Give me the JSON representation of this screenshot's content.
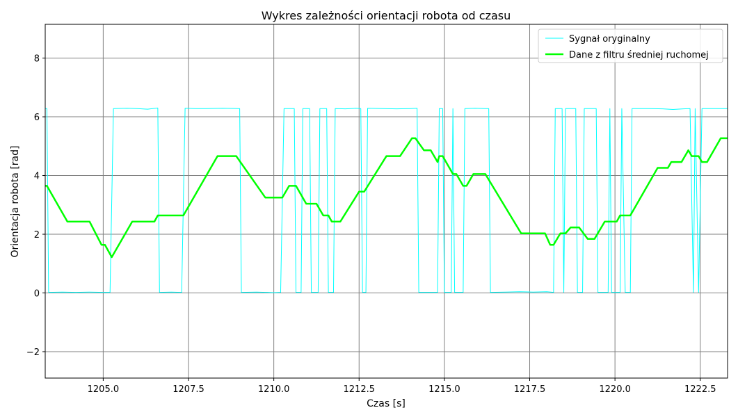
{
  "chart_data": {
    "type": "line",
    "title": "Wykres zależności orientacji robota od czasu",
    "xlabel": "Czas [s]",
    "ylabel": "Orientacja robota [rad]",
    "xlim": [
      1203.3,
      1223.3
    ],
    "ylim": [
      -2.9,
      9.15
    ],
    "xticks": [
      1205.0,
      1207.5,
      1210.0,
      1212.5,
      1215.0,
      1217.5,
      1220.0,
      1222.5
    ],
    "xtick_labels": [
      "1205.0",
      "1207.5",
      "1210.0",
      "1212.5",
      "1215.0",
      "1217.5",
      "1220.0",
      "1222.5"
    ],
    "yticks": [
      -2,
      0,
      2,
      4,
      6,
      8
    ],
    "ytick_labels": [
      "−2",
      "0",
      "2",
      "4",
      "6",
      "8"
    ],
    "grid": true,
    "legend_position": "top-right",
    "series": [
      {
        "name": "Sygnał oryginalny",
        "color": "#00ffff",
        "width": 1,
        "points": [
          [
            1203.3,
            6.28
          ],
          [
            1203.35,
            6.28
          ],
          [
            1203.4,
            0.02
          ],
          [
            1203.8,
            0.03
          ],
          [
            1204.2,
            0.02
          ],
          [
            1204.6,
            0.03
          ],
          [
            1205.0,
            0.02
          ],
          [
            1205.2,
            0.02
          ],
          [
            1205.3,
            6.28
          ],
          [
            1205.7,
            6.29
          ],
          [
            1206.0,
            6.28
          ],
          [
            1206.3,
            6.26
          ],
          [
            1206.6,
            6.3
          ],
          [
            1206.65,
            0.02
          ],
          [
            1207.0,
            0.03
          ],
          [
            1207.3,
            0.02
          ],
          [
            1207.4,
            6.29
          ],
          [
            1207.7,
            6.28
          ],
          [
            1208.0,
            6.28
          ],
          [
            1208.5,
            6.29
          ],
          [
            1209.0,
            6.28
          ],
          [
            1209.05,
            0.02
          ],
          [
            1209.5,
            0.03
          ],
          [
            1209.8,
            0.02
          ],
          [
            1210.0,
            0.01
          ],
          [
            1210.2,
            0.02
          ],
          [
            1210.3,
            6.28
          ],
          [
            1210.6,
            6.28
          ],
          [
            1210.65,
            0.02
          ],
          [
            1210.8,
            0.02
          ],
          [
            1210.85,
            6.28
          ],
          [
            1211.05,
            6.28
          ],
          [
            1211.1,
            0.02
          ],
          [
            1211.3,
            0.02
          ],
          [
            1211.35,
            6.28
          ],
          [
            1211.55,
            6.28
          ],
          [
            1211.6,
            0.02
          ],
          [
            1211.75,
            0.02
          ],
          [
            1211.8,
            6.28
          ],
          [
            1212.1,
            6.27
          ],
          [
            1212.4,
            6.29
          ],
          [
            1212.55,
            6.28
          ],
          [
            1212.6,
            0.02
          ],
          [
            1212.7,
            0.02
          ],
          [
            1212.75,
            6.29
          ],
          [
            1213.2,
            6.28
          ],
          [
            1213.6,
            6.27
          ],
          [
            1214.0,
            6.28
          ],
          [
            1214.2,
            6.29
          ],
          [
            1214.25,
            0.02
          ],
          [
            1214.8,
            0.02
          ],
          [
            1214.85,
            6.28
          ],
          [
            1214.95,
            6.28
          ],
          [
            1215.0,
            0.02
          ],
          [
            1215.2,
            0.02
          ],
          [
            1215.25,
            6.28
          ],
          [
            1215.3,
            0.02
          ],
          [
            1215.55,
            0.02
          ],
          [
            1215.6,
            6.28
          ],
          [
            1215.9,
            6.29
          ],
          [
            1216.2,
            6.28
          ],
          [
            1216.3,
            6.28
          ],
          [
            1216.35,
            0.02
          ],
          [
            1216.8,
            0.03
          ],
          [
            1217.2,
            0.04
          ],
          [
            1217.6,
            0.03
          ],
          [
            1218.0,
            0.04
          ],
          [
            1218.2,
            0.02
          ],
          [
            1218.25,
            6.28
          ],
          [
            1218.45,
            6.28
          ],
          [
            1218.5,
            0.02
          ],
          [
            1218.55,
            6.28
          ],
          [
            1218.85,
            6.28
          ],
          [
            1218.9,
            0.02
          ],
          [
            1219.05,
            0.02
          ],
          [
            1219.1,
            6.28
          ],
          [
            1219.45,
            6.28
          ],
          [
            1219.5,
            0.02
          ],
          [
            1219.8,
            0.02
          ],
          [
            1219.85,
            6.28
          ],
          [
            1219.9,
            0.02
          ],
          [
            1220.15,
            0.02
          ],
          [
            1220.2,
            6.28
          ],
          [
            1220.3,
            0.02
          ],
          [
            1220.45,
            0.02
          ],
          [
            1220.5,
            6.28
          ],
          [
            1221.0,
            6.28
          ],
          [
            1221.4,
            6.27
          ],
          [
            1221.7,
            6.25
          ],
          [
            1222.0,
            6.27
          ],
          [
            1222.2,
            6.28
          ],
          [
            1222.3,
            0.02
          ],
          [
            1222.35,
            6.28
          ],
          [
            1222.45,
            0.02
          ],
          [
            1222.55,
            6.28
          ],
          [
            1223.0,
            6.28
          ],
          [
            1223.3,
            6.28
          ]
        ]
      },
      {
        "name": "Dane z filtru średniej ruchomej",
        "color": "#00ff00",
        "width": 2.5,
        "points": [
          [
            1203.3,
            3.65
          ],
          [
            1203.35,
            3.65
          ],
          [
            1203.95,
            2.43
          ],
          [
            1204.6,
            2.43
          ],
          [
            1204.95,
            1.64
          ],
          [
            1205.05,
            1.64
          ],
          [
            1205.25,
            1.22
          ],
          [
            1205.85,
            2.43
          ],
          [
            1206.5,
            2.43
          ],
          [
            1206.6,
            2.64
          ],
          [
            1207.35,
            2.64
          ],
          [
            1208.35,
            4.66
          ],
          [
            1208.9,
            4.66
          ],
          [
            1209.75,
            3.25
          ],
          [
            1210.25,
            3.25
          ],
          [
            1210.45,
            3.65
          ],
          [
            1210.65,
            3.65
          ],
          [
            1210.95,
            3.04
          ],
          [
            1211.25,
            3.04
          ],
          [
            1211.45,
            2.64
          ],
          [
            1211.6,
            2.64
          ],
          [
            1211.7,
            2.43
          ],
          [
            1211.95,
            2.43
          ],
          [
            1212.5,
            3.45
          ],
          [
            1212.65,
            3.45
          ],
          [
            1213.3,
            4.66
          ],
          [
            1213.7,
            4.66
          ],
          [
            1214.05,
            5.27
          ],
          [
            1214.15,
            5.27
          ],
          [
            1214.4,
            4.86
          ],
          [
            1214.6,
            4.86
          ],
          [
            1214.8,
            4.46
          ],
          [
            1214.85,
            4.66
          ],
          [
            1214.95,
            4.66
          ],
          [
            1215.25,
            4.05
          ],
          [
            1215.35,
            4.05
          ],
          [
            1215.55,
            3.65
          ],
          [
            1215.65,
            3.65
          ],
          [
            1215.85,
            4.05
          ],
          [
            1216.2,
            4.05
          ],
          [
            1217.25,
            2.03
          ],
          [
            1217.95,
            2.03
          ],
          [
            1218.1,
            1.64
          ],
          [
            1218.2,
            1.64
          ],
          [
            1218.4,
            2.03
          ],
          [
            1218.55,
            2.03
          ],
          [
            1218.7,
            2.23
          ],
          [
            1218.95,
            2.23
          ],
          [
            1219.2,
            1.84
          ],
          [
            1219.4,
            1.84
          ],
          [
            1219.7,
            2.43
          ],
          [
            1220.05,
            2.43
          ],
          [
            1220.15,
            2.64
          ],
          [
            1220.45,
            2.64
          ],
          [
            1221.25,
            4.26
          ],
          [
            1221.55,
            4.26
          ],
          [
            1221.65,
            4.46
          ],
          [
            1221.95,
            4.46
          ],
          [
            1222.15,
            4.86
          ],
          [
            1222.25,
            4.66
          ],
          [
            1222.45,
            4.66
          ],
          [
            1222.55,
            4.46
          ],
          [
            1222.7,
            4.46
          ],
          [
            1223.1,
            5.27
          ],
          [
            1223.3,
            5.27
          ]
        ]
      }
    ]
  }
}
